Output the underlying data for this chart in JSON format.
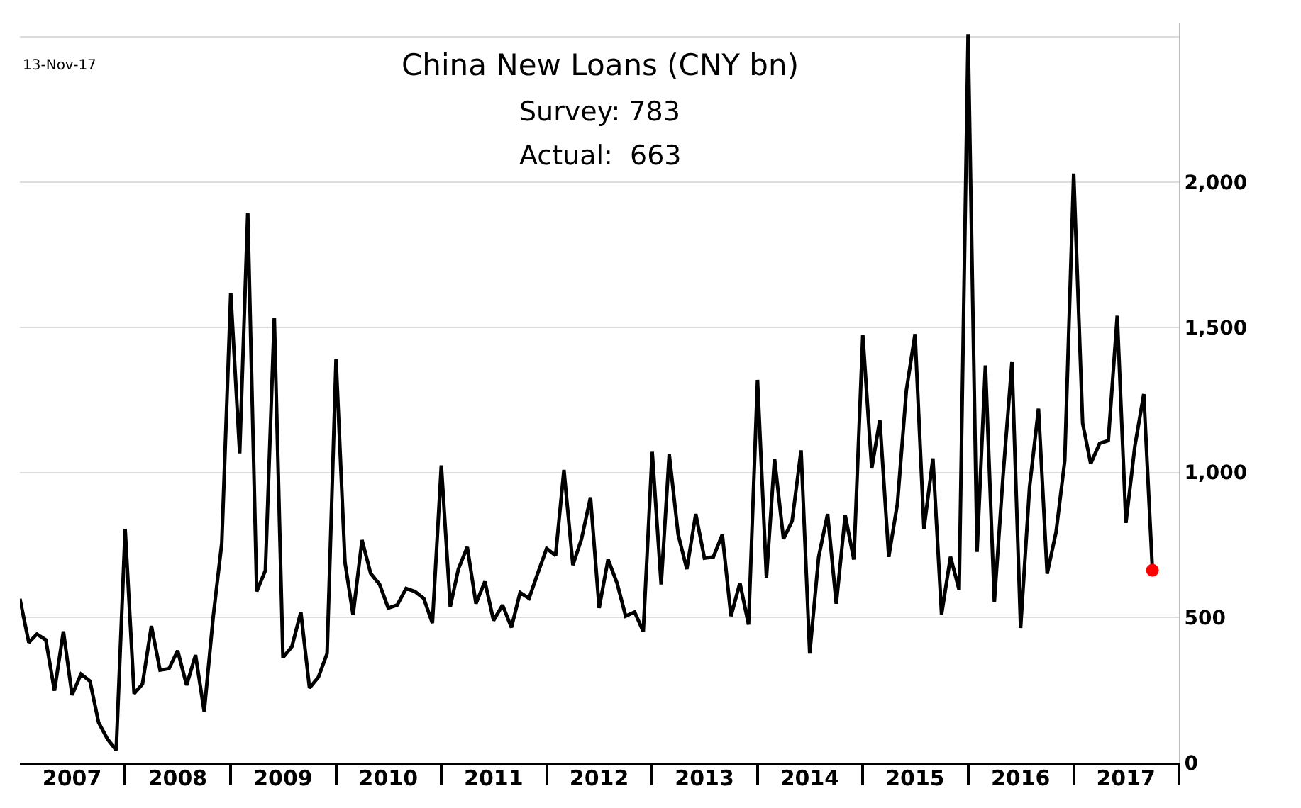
{
  "chart_data": {
    "type": "line",
    "title": "China New Loans (CNY bn)",
    "subtitle": "Survey: 783",
    "annotations": [
      "Actual:  663",
      "13-Nov-17"
    ],
    "x": [
      "2007-01",
      "2007-02",
      "2007-03",
      "2007-04",
      "2007-05",
      "2007-06",
      "2007-07",
      "2007-08",
      "2007-09",
      "2007-10",
      "2007-11",
      "2007-12",
      "2008-01",
      "2008-02",
      "2008-03",
      "2008-04",
      "2008-05",
      "2008-06",
      "2008-07",
      "2008-08",
      "2008-09",
      "2008-10",
      "2008-11",
      "2008-12",
      "2009-01",
      "2009-02",
      "2009-03",
      "2009-04",
      "2009-05",
      "2009-06",
      "2009-07",
      "2009-08",
      "2009-09",
      "2009-10",
      "2009-11",
      "2009-12",
      "2010-01",
      "2010-02",
      "2010-03",
      "2010-04",
      "2010-05",
      "2010-06",
      "2010-07",
      "2010-08",
      "2010-09",
      "2010-10",
      "2010-11",
      "2010-12",
      "2011-01",
      "2011-02",
      "2011-03",
      "2011-04",
      "2011-05",
      "2011-06",
      "2011-07",
      "2011-08",
      "2011-09",
      "2011-10",
      "2011-11",
      "2011-12",
      "2012-01",
      "2012-02",
      "2012-03",
      "2012-04",
      "2012-05",
      "2012-06",
      "2012-07",
      "2012-08",
      "2012-09",
      "2012-10",
      "2012-11",
      "2012-12",
      "2013-01",
      "2013-02",
      "2013-03",
      "2013-04",
      "2013-05",
      "2013-06",
      "2013-07",
      "2013-08",
      "2013-09",
      "2013-10",
      "2013-11",
      "2013-12",
      "2014-01",
      "2014-02",
      "2014-03",
      "2014-04",
      "2014-05",
      "2014-06",
      "2014-07",
      "2014-08",
      "2014-09",
      "2014-10",
      "2014-11",
      "2014-12",
      "2015-01",
      "2015-02",
      "2015-03",
      "2015-04",
      "2015-05",
      "2015-06",
      "2015-07",
      "2015-08",
      "2015-09",
      "2015-10",
      "2015-11",
      "2015-12",
      "2016-01",
      "2016-02",
      "2016-03",
      "2016-04",
      "2016-05",
      "2016-06",
      "2016-07",
      "2016-08",
      "2016-09",
      "2016-10",
      "2016-11",
      "2016-12",
      "2017-01",
      "2017-02",
      "2017-03",
      "2017-04",
      "2017-05",
      "2017-06",
      "2017-07",
      "2017-08",
      "2017-09",
      "2017-10"
    ],
    "series": [
      {
        "color": "#000000",
        "values": [
          565,
          414,
          443,
          423,
          248,
          452,
          233,
          305,
          281,
          138,
          81,
          43,
          805,
          238,
          271,
          471,
          319,
          324,
          386,
          267,
          371,
          176,
          500,
          757,
          1618,
          1066,
          1895,
          590,
          662,
          1533,
          362,
          400,
          519,
          257,
          295,
          376,
          1390,
          690,
          509,
          767,
          652,
          614,
          533,
          543,
          600,
          590,
          566,
          481,
          1024,
          538,
          667,
          743,
          548,
          624,
          490,
          543,
          466,
          586,
          566,
          652,
          738,
          714,
          1009,
          681,
          771,
          914,
          533,
          700,
          619,
          505,
          519,
          452,
          1071,
          614,
          1062,
          786,
          667,
          857,
          705,
          709,
          786,
          505,
          619,
          476,
          1319,
          638,
          1047,
          771,
          833,
          1076,
          376,
          709,
          857,
          548,
          852,
          700,
          1473,
          1014,
          1181,
          709,
          893,
          1283,
          1477,
          806,
          1048,
          511,
          709,
          595,
          2510,
          726,
          1369,
          554,
          986,
          1380,
          464,
          949,
          1220,
          651,
          795,
          1040,
          2030,
          1170,
          1030,
          1100,
          1110,
          1540,
          826,
          1090,
          1270,
          663
        ]
      },
      {
        "type": "scatter",
        "marker": "circle",
        "color": "#ff0000",
        "x": [
          "2017-10"
        ],
        "values": [
          663
        ]
      }
    ],
    "xlim": [
      "2007-01",
      "2018-01"
    ],
    "xticks": [
      {
        "value": "2007-07",
        "label": "2007"
      },
      {
        "value": "2008-07",
        "label": "2008"
      },
      {
        "value": "2009-07",
        "label": "2009"
      },
      {
        "value": "2010-07",
        "label": "2010"
      },
      {
        "value": "2011-07",
        "label": "2011"
      },
      {
        "value": "2012-07",
        "label": "2012"
      },
      {
        "value": "2013-07",
        "label": "2013"
      },
      {
        "value": "2014-07",
        "label": "2014"
      },
      {
        "value": "2015-07",
        "label": "2015"
      },
      {
        "value": "2016-07",
        "label": "2016"
      },
      {
        "value": "2017-07",
        "label": "2017"
      },
      {
        "value": "2008-01",
        "label": null
      },
      {
        "value": "2009-01",
        "label": null
      },
      {
        "value": "2010-01",
        "label": null
      },
      {
        "value": "2011-01",
        "label": null
      },
      {
        "value": "2012-01",
        "label": null
      },
      {
        "value": "2013-01",
        "label": null
      },
      {
        "value": "2014-01",
        "label": null
      },
      {
        "value": "2015-01",
        "label": null
      },
      {
        "value": "2016-01",
        "label": null
      },
      {
        "value": "2017-01",
        "label": null
      },
      {
        "value": "2018-01",
        "label": null
      }
    ],
    "ylim": [
      0,
      2550
    ],
    "yticks": [
      0,
      500,
      {
        "value": 1000,
        "label": "1,000"
      },
      {
        "value": 1500,
        "label": "1,500"
      },
      {
        "value": 2000,
        "label": "2,000"
      },
      {
        "value": 2500,
        "label": null
      }
    ],
    "grid": "y",
    "marker": "none",
    "line_style": "solid"
  }
}
